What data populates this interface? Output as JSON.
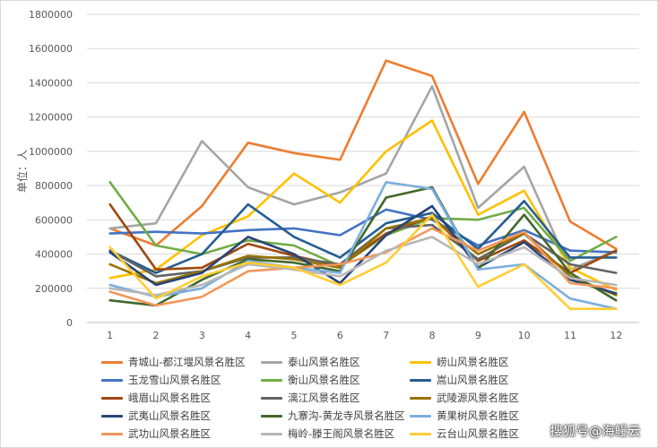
{
  "chart_data": {
    "type": "line",
    "ylabel": "单位：人",
    "ylim": [
      0,
      1800000
    ],
    "yticks": [
      "0",
      "200000",
      "400000",
      "600000",
      "800000",
      "1000000",
      "1200000",
      "1400000",
      "1600000",
      "1800000"
    ],
    "x": [
      1,
      2,
      3,
      4,
      5,
      6,
      7,
      8,
      9,
      10,
      11,
      12
    ],
    "grid": "horizontal",
    "legend_position": "bottom",
    "series": [
      {
        "name": "青城山-都江堰风景名胜区",
        "color": "#ED7D31",
        "values": [
          550000,
          450000,
          680000,
          1050000,
          990000,
          950000,
          1530000,
          1440000,
          810000,
          1230000,
          590000,
          430000
        ]
      },
      {
        "name": "泰山风景名胜区",
        "color": "#A5A5A5",
        "values": [
          550000,
          580000,
          1060000,
          790000,
          690000,
          760000,
          870000,
          1380000,
          670000,
          910000,
          310000,
          420000
        ]
      },
      {
        "name": "崂山风景名胜区",
        "color": "#FFC000",
        "values": [
          260000,
          310000,
          510000,
          620000,
          870000,
          700000,
          1000000,
          1180000,
          630000,
          770000,
          320000,
          190000
        ]
      },
      {
        "name": "玉龙雪山风景名胜区",
        "color": "#4472C4",
        "values": [
          520000,
          530000,
          520000,
          540000,
          550000,
          510000,
          660000,
          600000,
          450000,
          540000,
          420000,
          410000
        ]
      },
      {
        "name": "衡山风景名胜区",
        "color": "#70AD47",
        "values": [
          820000,
          450000,
          400000,
          480000,
          450000,
          330000,
          510000,
          610000,
          600000,
          670000,
          360000,
          500000
        ]
      },
      {
        "name": "嵩山风景名胜区",
        "color": "#255E91",
        "values": [
          420000,
          290000,
          400000,
          690000,
          500000,
          380000,
          580000,
          640000,
          430000,
          710000,
          380000,
          380000
        ]
      },
      {
        "name": "峨眉山风景名胜区",
        "color": "#9E480E",
        "values": [
          690000,
          310000,
          320000,
          460000,
          390000,
          330000,
          520000,
          620000,
          360000,
          480000,
          290000,
          420000
        ]
      },
      {
        "name": "漓江风景名胜区",
        "color": "#636363",
        "values": [
          420000,
          270000,
          300000,
          380000,
          380000,
          340000,
          550000,
          570000,
          370000,
          520000,
          340000,
          290000
        ]
      },
      {
        "name": "武陵源风景名胜区",
        "color": "#997300",
        "values": [
          340000,
          230000,
          300000,
          390000,
          370000,
          320000,
          550000,
          610000,
          400000,
          520000,
          270000,
          160000
        ]
      },
      {
        "name": "武夷山风景名胜区",
        "color": "#264478",
        "values": [
          410000,
          220000,
          290000,
          500000,
          400000,
          230000,
          510000,
          680000,
          320000,
          470000,
          250000,
          170000
        ]
      },
      {
        "name": "九寨沟-黄龙寺风景名胜区",
        "color": "#43682B",
        "values": [
          130000,
          100000,
          250000,
          370000,
          350000,
          300000,
          730000,
          790000,
          310000,
          630000,
          290000,
          130000
        ]
      },
      {
        "name": "黄果树风景名胜区",
        "color": "#7CAFDD",
        "values": [
          220000,
          150000,
          200000,
          360000,
          320000,
          290000,
          820000,
          780000,
          310000,
          340000,
          140000,
          80000
        ]
      },
      {
        "name": "武功山风景名胜区",
        "color": "#F1975A",
        "values": [
          180000,
          100000,
          150000,
          300000,
          320000,
          340000,
          410000,
          550000,
          420000,
          530000,
          230000,
          200000
        ]
      },
      {
        "name": "梅岭-滕王阁风景名胜区",
        "color": "#B7B7B7",
        "values": [
          200000,
          160000,
          220000,
          340000,
          310000,
          270000,
          420000,
          500000,
          340000,
          440000,
          260000,
          220000
        ]
      },
      {
        "name": "云台山风景名胜区",
        "color": "#FFCD33",
        "values": [
          440000,
          140000,
          270000,
          350000,
          320000,
          220000,
          350000,
          630000,
          210000,
          340000,
          80000,
          80000
        ]
      }
    ]
  },
  "watermark": "搜狐号@海鳗云"
}
